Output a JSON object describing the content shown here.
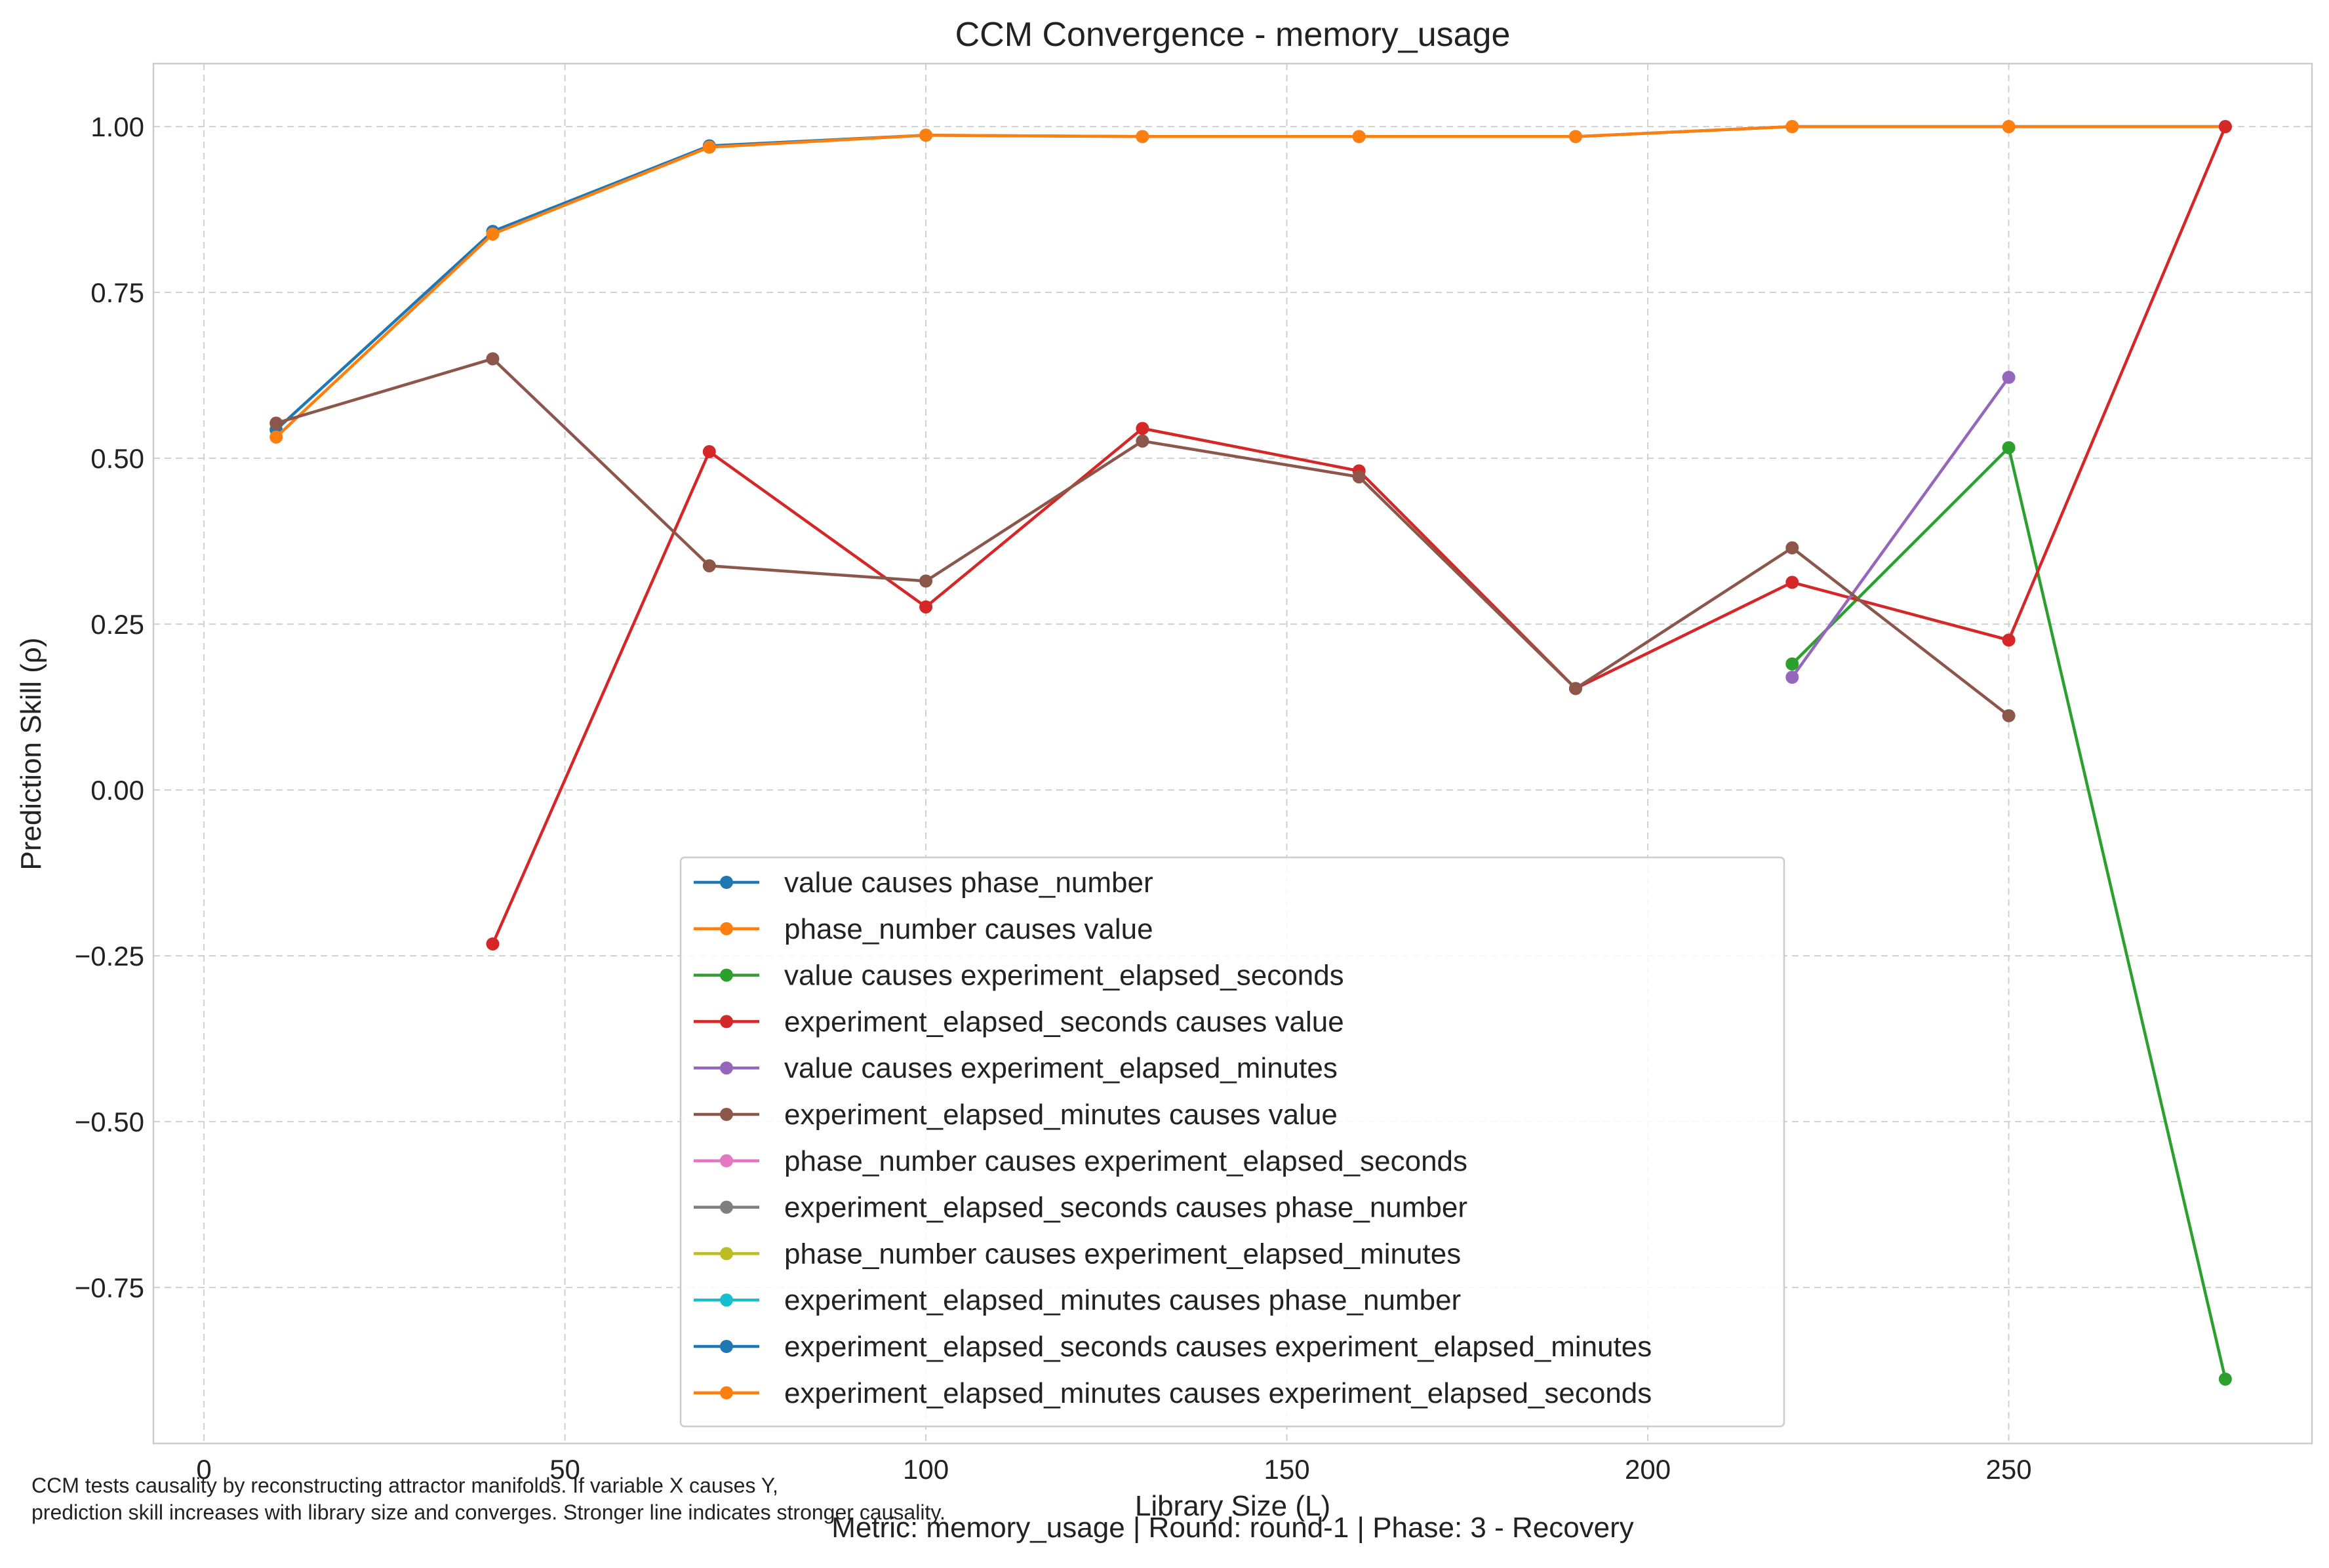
{
  "chart_data": {
    "type": "line",
    "title": "CCM Convergence - memory_usage",
    "xlabel": "Library Size (L)",
    "ylabel": "Prediction Skill (ρ)",
    "xlim": [
      -7,
      292
    ],
    "ylim": [
      -0.985,
      1.095
    ],
    "xticks": [
      0,
      50,
      100,
      150,
      200,
      250
    ],
    "yticks": [
      1.0,
      0.75,
      0.5,
      0.25,
      0.0,
      -0.25,
      -0.5,
      -0.75
    ],
    "xtick_labels": [
      "0",
      "50",
      "100",
      "150",
      "200",
      "250"
    ],
    "ytick_labels": [
      "1.00",
      "0.75",
      "0.50",
      "0.25",
      "0.00",
      "−0.25",
      "−0.50",
      "−0.75"
    ],
    "grid": true,
    "legend_position": "lower-center",
    "series": [
      {
        "name": "value causes phase_number",
        "color": "#1f77b4",
        "points": [
          [
            10,
            0.543
          ],
          [
            40,
            0.842
          ],
          [
            70,
            0.971
          ],
          [
            100,
            0.987
          ],
          [
            130,
            0.985
          ],
          [
            160,
            0.985
          ],
          [
            190,
            0.985
          ],
          [
            220,
            1.0
          ],
          [
            250,
            1.0
          ],
          [
            280,
            1.0
          ]
        ]
      },
      {
        "name": "phase_number causes value",
        "color": "#ff7f0e",
        "points": [
          [
            10,
            0.532
          ],
          [
            40,
            0.838
          ],
          [
            70,
            0.969
          ],
          [
            100,
            0.987
          ],
          [
            130,
            0.985
          ],
          [
            160,
            0.985
          ],
          [
            190,
            0.985
          ],
          [
            220,
            1.0
          ],
          [
            250,
            1.0
          ],
          [
            280,
            1.0
          ]
        ]
      },
      {
        "name": "value causes experiment_elapsed_seconds",
        "color": "#2ca02c",
        "points": [
          [
            220,
            0.19
          ],
          [
            250,
            0.516
          ],
          [
            280,
            -0.888
          ]
        ]
      },
      {
        "name": "experiment_elapsed_seconds causes value",
        "color": "#d62728",
        "points": [
          [
            40,
            -0.232
          ],
          [
            70,
            0.51
          ],
          [
            100,
            0.276
          ],
          [
            130,
            0.545
          ],
          [
            160,
            0.481
          ],
          [
            190,
            0.153
          ],
          [
            220,
            0.313
          ],
          [
            250,
            0.226
          ],
          [
            280,
            1.0
          ]
        ]
      },
      {
        "name": "value causes experiment_elapsed_minutes",
        "color": "#9467bd",
        "points": [
          [
            220,
            0.17
          ],
          [
            250,
            0.622
          ]
        ]
      },
      {
        "name": "experiment_elapsed_minutes causes value",
        "color": "#8c564b",
        "points": [
          [
            10,
            0.553
          ],
          [
            40,
            0.65
          ],
          [
            70,
            0.338
          ],
          [
            100,
            0.315
          ],
          [
            130,
            0.526
          ],
          [
            160,
            0.472
          ],
          [
            190,
            0.153
          ],
          [
            220,
            0.365
          ],
          [
            250,
            0.112
          ]
        ]
      },
      {
        "name": "phase_number causes experiment_elapsed_seconds",
        "color": "#e377c2",
        "points": []
      },
      {
        "name": "experiment_elapsed_seconds causes phase_number",
        "color": "#7f7f7f",
        "points": []
      },
      {
        "name": "phase_number causes experiment_elapsed_minutes",
        "color": "#bcbd22",
        "points": []
      },
      {
        "name": "experiment_elapsed_minutes causes phase_number",
        "color": "#17becf",
        "points": []
      },
      {
        "name": "experiment_elapsed_seconds causes experiment_elapsed_minutes",
        "color": "#1f77b4",
        "points": []
      },
      {
        "name": "experiment_elapsed_minutes causes experiment_elapsed_seconds",
        "color": "#ff7f0e",
        "points": []
      }
    ]
  },
  "captions": {
    "note_line1": "CCM tests causality by reconstructing attractor manifolds. If variable X causes Y,",
    "note_line2": "prediction skill increases with library size and converges. Stronger line indicates stronger causality.",
    "meta": "Metric: memory_usage | Round: round-1 | Phase: 3 - Recovery"
  }
}
